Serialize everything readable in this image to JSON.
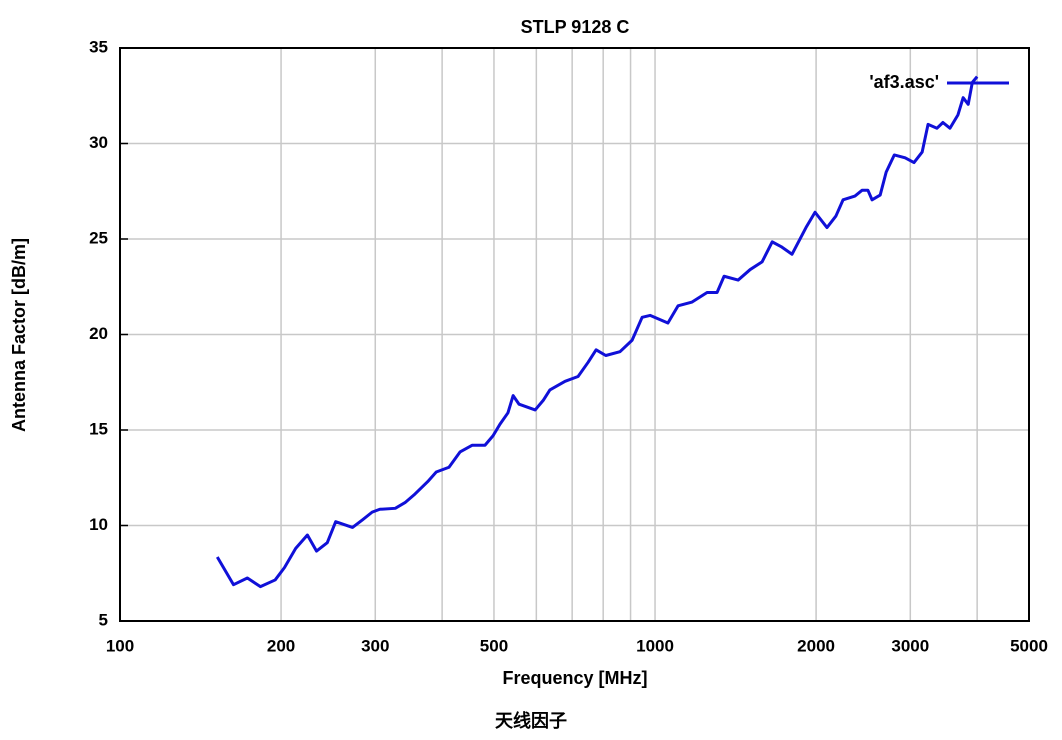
{
  "chart_data": {
    "type": "line",
    "title": "STLP 9128 C",
    "x_label": "Frequency [MHz]",
    "y_label": "Antenna Factor [dB/m]",
    "caption": "天线因子",
    "x_scale": "log",
    "xlim": [
      100,
      5000
    ],
    "ylim": [
      5,
      35
    ],
    "xticks": [
      100,
      200,
      300,
      500,
      1000,
      2000,
      3000,
      5000
    ],
    "xminor": [
      400,
      600,
      700,
      800,
      900,
      4000
    ],
    "yticks": [
      5,
      10,
      15,
      20,
      25,
      30,
      35
    ],
    "grid": true,
    "legend": "upper right",
    "series": [
      {
        "name": "'af3.asc'",
        "color": "#1010d8",
        "x": [
          152,
          163,
          173,
          183,
          195,
          203,
          213,
          224,
          233,
          244,
          253,
          272,
          284,
          296,
          306,
          327,
          341,
          356,
          376,
          390,
          412,
          432,
          455,
          481,
          498,
          513,
          531,
          543,
          557,
          597,
          618,
          636,
          679,
          718,
          750,
          776,
          809,
          860,
          906,
          946,
          979,
          1057,
          1104,
          1173,
          1251,
          1306,
          1346,
          1430,
          1506,
          1585,
          1656,
          1721,
          1803,
          1915,
          1991,
          2096,
          2178,
          2246,
          2364,
          2437,
          2500,
          2545,
          2635,
          2704,
          2800,
          2934,
          3048,
          3157,
          3238,
          3365,
          3452,
          3558,
          3683,
          3766,
          3849,
          3918,
          4000
        ],
        "values": [
          8.35,
          6.9,
          7.25,
          6.8,
          7.15,
          7.8,
          8.8,
          9.5,
          8.66,
          9.1,
          10.2,
          9.9,
          10.3,
          10.7,
          10.85,
          10.9,
          11.2,
          11.65,
          12.3,
          12.8,
          13.05,
          13.85,
          14.2,
          14.2,
          14.7,
          15.3,
          15.9,
          16.8,
          16.35,
          16.05,
          16.55,
          17.1,
          17.55,
          17.8,
          18.55,
          19.2,
          18.9,
          19.1,
          19.7,
          20.9,
          21.0,
          20.6,
          21.5,
          21.7,
          22.2,
          22.2,
          23.05,
          22.85,
          23.4,
          23.8,
          24.85,
          24.6,
          24.2,
          25.6,
          26.4,
          25.6,
          26.2,
          27.05,
          27.25,
          27.55,
          27.55,
          27.05,
          27.3,
          28.5,
          29.4,
          29.25,
          29.0,
          29.55,
          31.0,
          30.8,
          31.1,
          30.8,
          31.5,
          32.4,
          32.05,
          33.2,
          33.5
        ]
      }
    ]
  }
}
